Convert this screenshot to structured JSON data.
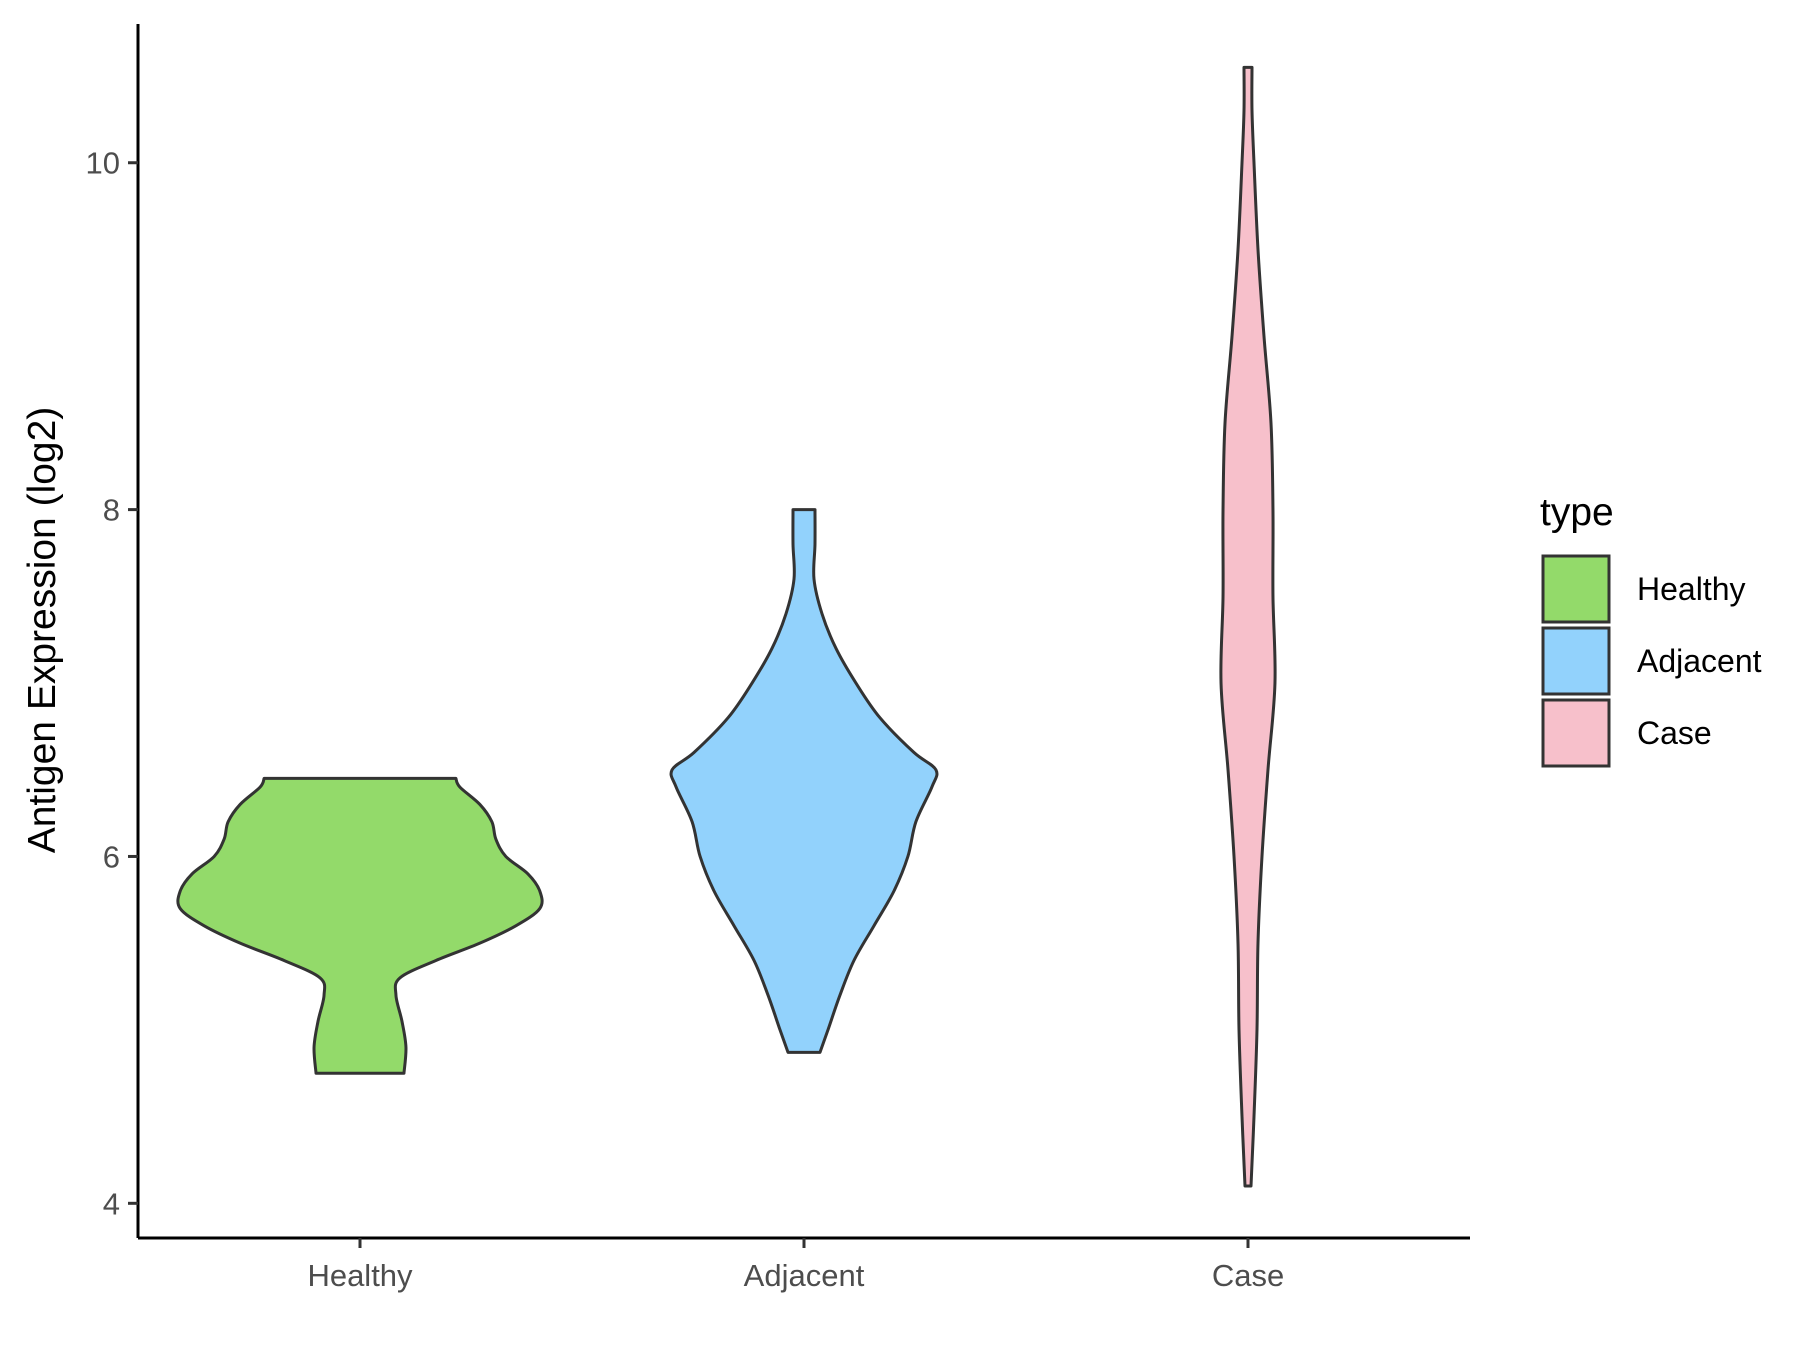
{
  "chart_data": {
    "type": "violin",
    "title": "",
    "xlabel": "",
    "ylabel": "Antigen Expression (log2)",
    "ylim": [
      3.8,
      10.8
    ],
    "yticks": [
      4,
      6,
      8,
      10
    ],
    "grid": false,
    "categories": [
      "Healthy",
      "Adjacent",
      "Case"
    ],
    "legend": {
      "title": "type",
      "position": "right",
      "entries": [
        "Healthy",
        "Adjacent",
        "Case"
      ]
    },
    "colors": {
      "Healthy": "#93DA6A",
      "Adjacent": "#92D2FC",
      "Case": "#F7C0CB",
      "outline": "#333333"
    },
    "series": [
      {
        "category": "Healthy",
        "min": 4.75,
        "max": 6.45,
        "density": [
          [
            4.75,
            0.22
          ],
          [
            4.9,
            0.23
          ],
          [
            5.05,
            0.21
          ],
          [
            5.2,
            0.18
          ],
          [
            5.3,
            0.2
          ],
          [
            5.4,
            0.38
          ],
          [
            5.5,
            0.6
          ],
          [
            5.6,
            0.78
          ],
          [
            5.7,
            0.9
          ],
          [
            5.8,
            0.9
          ],
          [
            5.9,
            0.84
          ],
          [
            6.0,
            0.73
          ],
          [
            6.1,
            0.68
          ],
          [
            6.2,
            0.66
          ],
          [
            6.3,
            0.6
          ],
          [
            6.4,
            0.5
          ],
          [
            6.45,
            0.48
          ]
        ]
      },
      {
        "category": "Adjacent",
        "min": 4.87,
        "max": 8.0,
        "density": [
          [
            4.87,
            0.08
          ],
          [
            5.0,
            0.12
          ],
          [
            5.2,
            0.18
          ],
          [
            5.4,
            0.25
          ],
          [
            5.6,
            0.35
          ],
          [
            5.8,
            0.45
          ],
          [
            6.0,
            0.52
          ],
          [
            6.2,
            0.56
          ],
          [
            6.4,
            0.64
          ],
          [
            6.5,
            0.66
          ],
          [
            6.6,
            0.55
          ],
          [
            6.8,
            0.38
          ],
          [
            7.0,
            0.26
          ],
          [
            7.2,
            0.16
          ],
          [
            7.4,
            0.09
          ],
          [
            7.6,
            0.05
          ],
          [
            7.8,
            0.055
          ],
          [
            8.0,
            0.055
          ]
        ]
      },
      {
        "category": "Case",
        "min": 4.1,
        "max": 10.55,
        "density": [
          [
            4.1,
            0.015
          ],
          [
            4.5,
            0.03
          ],
          [
            5.0,
            0.045
          ],
          [
            5.5,
            0.05
          ],
          [
            6.0,
            0.07
          ],
          [
            6.5,
            0.1
          ],
          [
            7.0,
            0.135
          ],
          [
            7.5,
            0.125
          ],
          [
            8.0,
            0.125
          ],
          [
            8.5,
            0.115
          ],
          [
            9.0,
            0.08
          ],
          [
            9.5,
            0.05
          ],
          [
            10.0,
            0.03
          ],
          [
            10.3,
            0.02
          ],
          [
            10.55,
            0.02
          ]
        ]
      }
    ]
  }
}
